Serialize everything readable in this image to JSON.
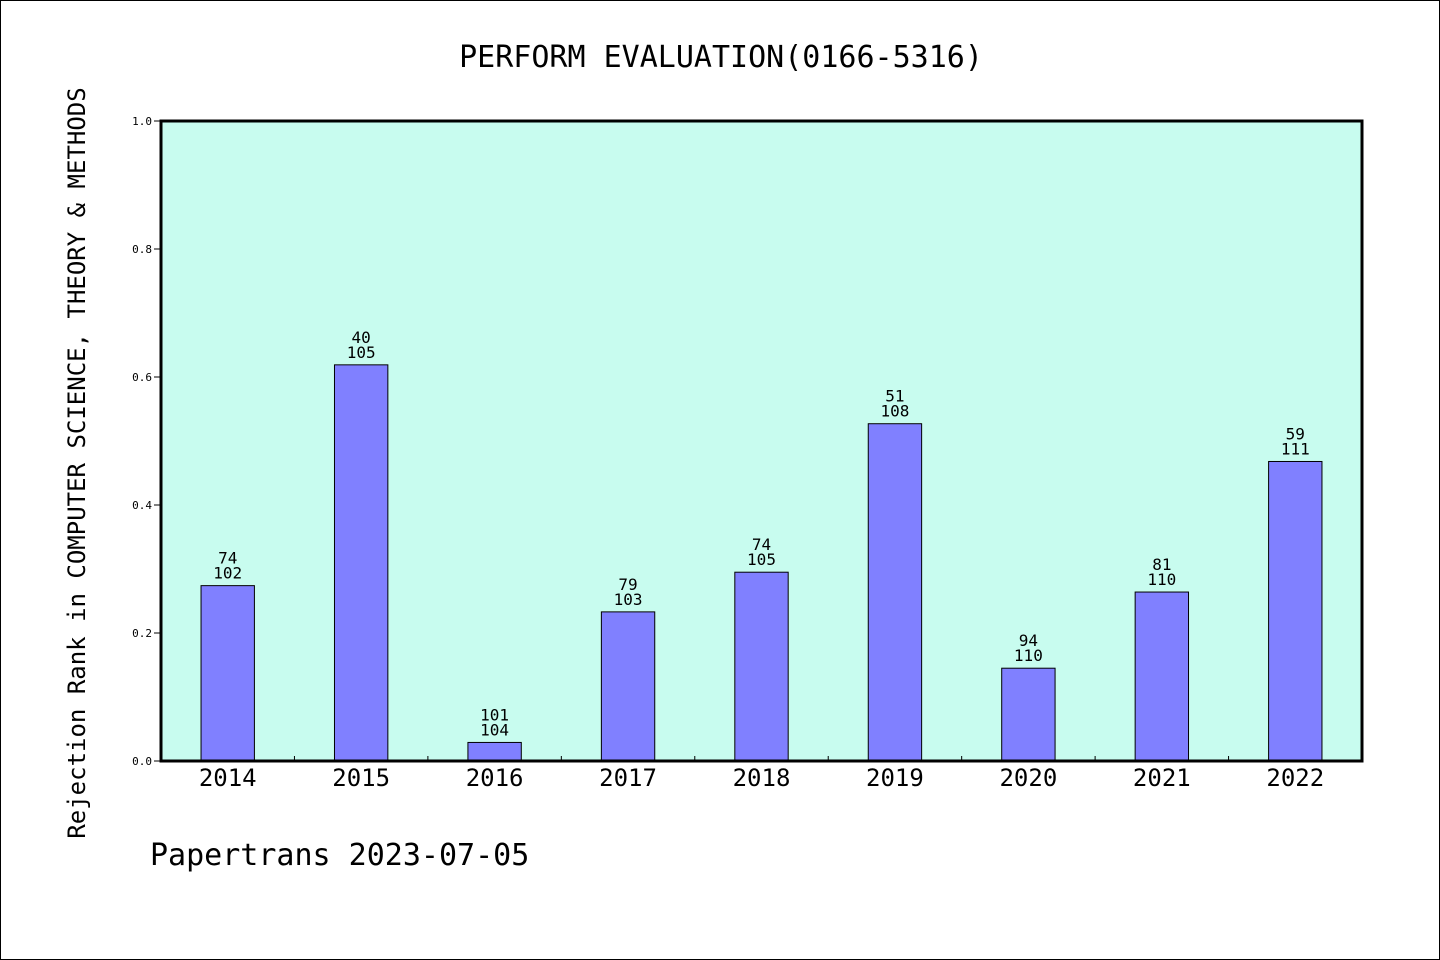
{
  "chart_data": {
    "type": "bar",
    "title": "PERFORM EVALUATION(0166-5316)",
    "ylabel": "Rejection Rank in COMPUTER SCIENCE, THEORY & METHODS",
    "xlabel": "",
    "ylim": [
      0,
      1.0
    ],
    "yticks": [
      "0.0",
      "0.2",
      "0.4",
      "0.6",
      "0.8",
      "1.0"
    ],
    "categories": [
      "2014",
      "2015",
      "2016",
      "2017",
      "2018",
      "2019",
      "2020",
      "2021",
      "2022"
    ],
    "values": [
      0.274,
      0.619,
      0.029,
      0.233,
      0.295,
      0.527,
      0.145,
      0.264,
      0.468
    ],
    "rank": [
      "74",
      "40",
      "101",
      "79",
      "74",
      "51",
      "94",
      "81",
      "59"
    ],
    "total": [
      "102",
      "105",
      "104",
      "103",
      "105",
      "108",
      "110",
      "110",
      "111"
    ],
    "grid": false,
    "colors": {
      "plot_bg": "#c8fcef",
      "bar": "#8080ff",
      "bar_stroke": "#000000"
    }
  },
  "footer": "Papertrans 2023-07-05"
}
